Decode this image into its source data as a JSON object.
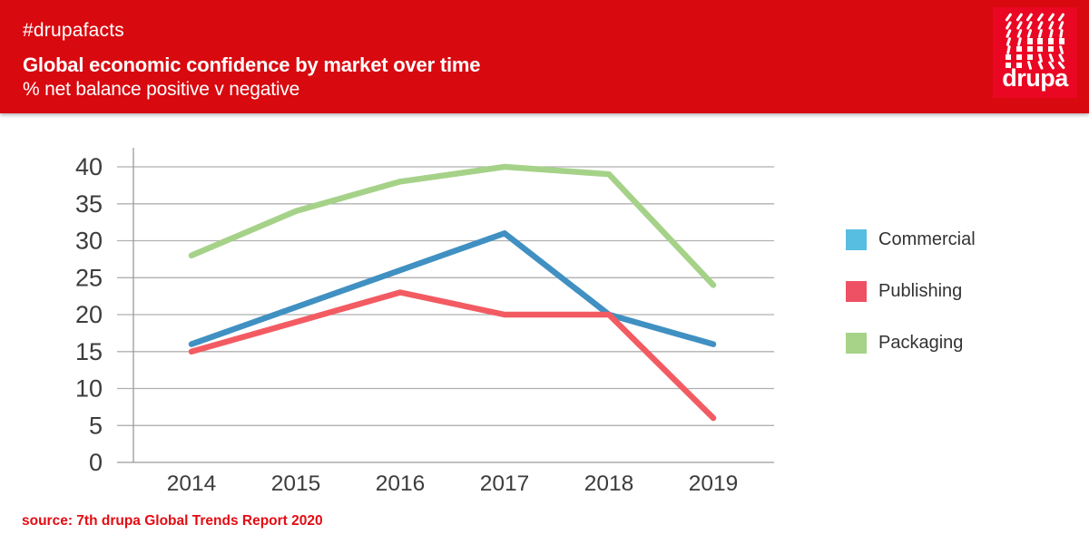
{
  "header": {
    "hashtag": "#drupafacts",
    "title": "Global economic confidence by market over time",
    "subtitle": "% net balance positive v negative",
    "background_color": "#d8090f",
    "logo": {
      "text": "drupa",
      "block_color": "#ea0723",
      "pattern_icon": "drupa-mark-grid"
    }
  },
  "footer": {
    "source": "source: 7th drupa Global Trends Report 2020",
    "color": "#e30b13"
  },
  "chart_data": {
    "type": "line",
    "title": "Global economic confidence by market over time",
    "subtitle": "% net balance positive v negative",
    "xlabel": "",
    "ylabel": "",
    "categories": [
      "2014",
      "2015",
      "2016",
      "2017",
      "2018",
      "2019"
    ],
    "series": [
      {
        "name": "Commercial",
        "line_color": "#4090c2",
        "legend_color": "#58bee1",
        "values": [
          16,
          21,
          26,
          31,
          20,
          16
        ]
      },
      {
        "name": "Publishing",
        "line_color": "#f35b62",
        "legend_color": "#ef5164",
        "values": [
          15,
          19,
          23,
          20,
          20,
          6
        ]
      },
      {
        "name": "Packaging",
        "line_color": "#a5d288",
        "legend_color": "#a6d387",
        "values": [
          28,
          34,
          38,
          40,
          39,
          24
        ]
      }
    ],
    "ylim": [
      0,
      40
    ],
    "ytick_step": 5,
    "grid": true,
    "legend_position": "right",
    "axis_color": "#9a9a9a",
    "gridline_color": "#b0b0b0",
    "tick_label_color": "#3c3c3c"
  }
}
